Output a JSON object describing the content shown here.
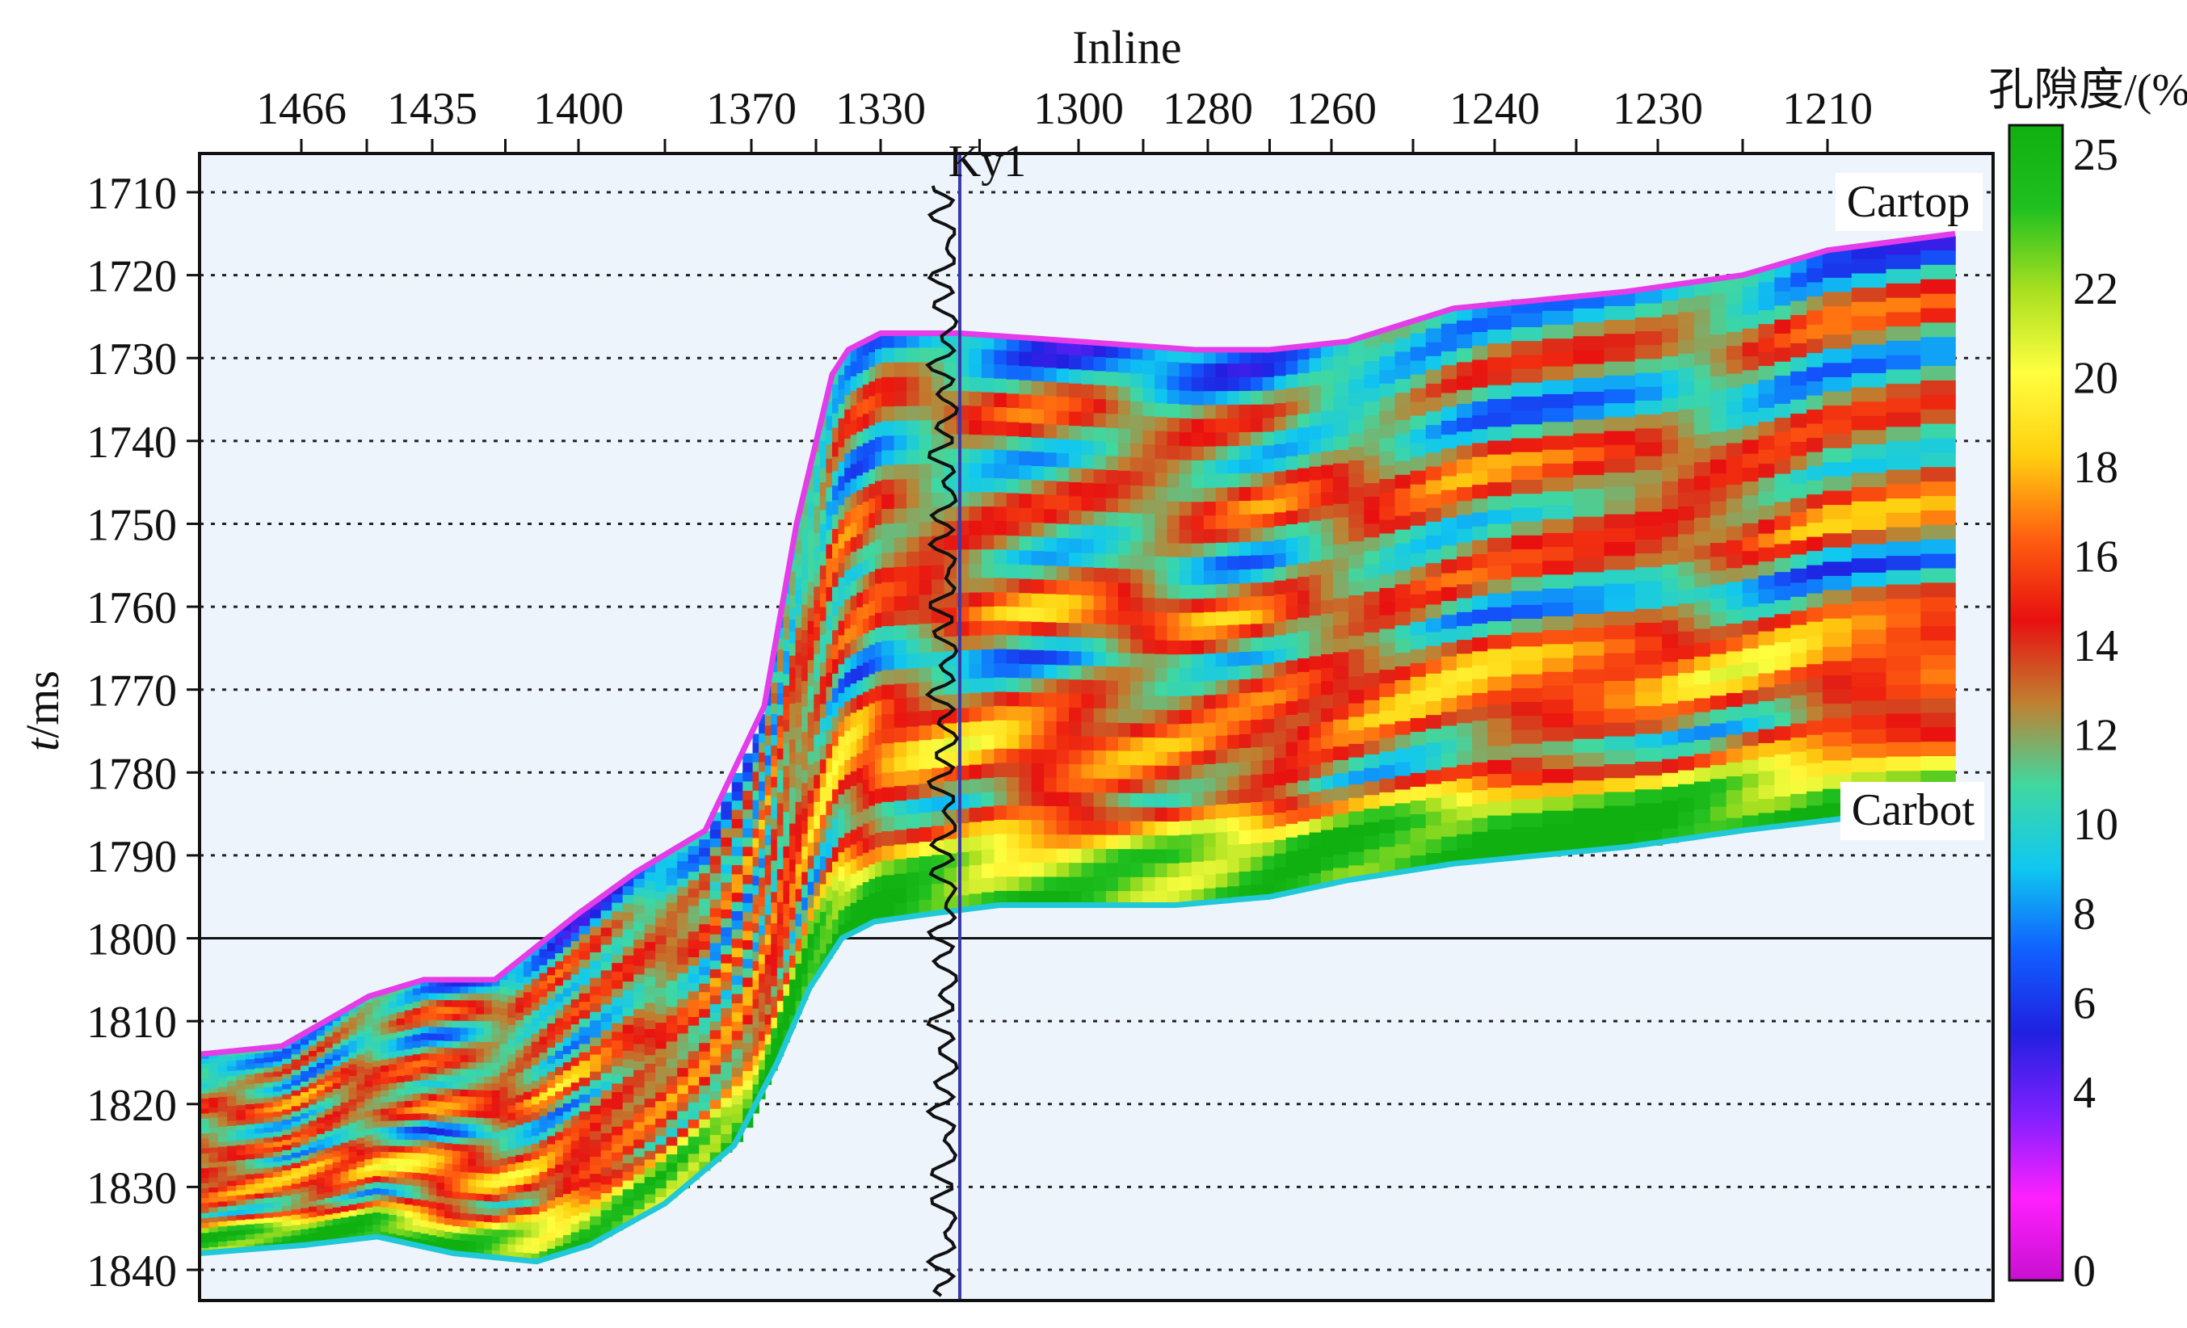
{
  "chart_data": {
    "type": "heatmap",
    "title": "",
    "xlabel": "Inline",
    "ylabel_italic": "t",
    "ylabel_unit": "/ms",
    "x_axis_position": "top",
    "x_tick_labels": [
      "1466",
      "1435",
      "1400",
      "1370",
      "1330",
      "1300",
      "1280",
      "1260",
      "1240",
      "1230",
      "1210"
    ],
    "y_ticks": [
      1710,
      1720,
      1730,
      1740,
      1750,
      1760,
      1770,
      1780,
      1790,
      1800,
      1810,
      1820,
      1830,
      1840
    ],
    "ylim": [
      1840,
      1705
    ],
    "grid": "dotted horizontal",
    "reference_line_t": 1800,
    "well": {
      "name": "Ky1",
      "inline": 1318
    },
    "horizons": [
      {
        "name": "Cartop",
        "color": "#e33ce8",
        "x": [
          1487,
          1470,
          1450,
          1437,
          1420,
          1400,
          1390,
          1378,
          1366,
          1356,
          1345,
          1340,
          1330,
          1318,
          1300,
          1282,
          1270,
          1258,
          1245,
          1232,
          1220,
          1210,
          1203
        ],
        "t": [
          1814,
          1813,
          1807,
          1805,
          1805,
          1797,
          1792,
          1787,
          1772,
          1750,
          1732,
          1729,
          1727,
          1727,
          1728,
          1729,
          1729,
          1728,
          1724,
          1722,
          1720,
          1717,
          1715
        ]
      },
      {
        "name": "Carbot",
        "color": "#20c8d8",
        "x": [
          1487,
          1465,
          1448,
          1430,
          1410,
          1398,
          1385,
          1373,
          1362,
          1352,
          1342,
          1332,
          1322,
          1312,
          1300,
          1285,
          1270,
          1258,
          1245,
          1232,
          1220,
          1207
        ],
        "t": [
          1838,
          1837,
          1836,
          1838,
          1839,
          1837,
          1832,
          1825,
          1815,
          1806,
          1800,
          1798,
          1797,
          1796,
          1796,
          1796,
          1795,
          1793,
          1791,
          1789,
          1787,
          1785
        ]
      }
    ],
    "colorbar": {
      "label": "孔隙度/(%)",
      "range": [
        0,
        25
      ],
      "tick_labels": [
        "25",
        "22",
        "20",
        "18",
        "16",
        "14",
        "12",
        "10",
        "8",
        "6",
        "4",
        "0"
      ],
      "stops": [
        "#c810d0",
        "#ff20ff",
        "#8020ff",
        "#2020e0",
        "#1060ff",
        "#10c8f0",
        "#40d8a0",
        "#c08030",
        "#e81010",
        "#ff6010",
        "#ffd010",
        "#ffff40",
        "#a8e020",
        "#20c020",
        "#10b010"
      ]
    },
    "layers": [
      {
        "dt": 3,
        "porosity": 8
      },
      {
        "dt": 8,
        "porosity": 14
      },
      {
        "dt": 13,
        "porosity": 9
      },
      {
        "dt": 19,
        "porosity": 15
      },
      {
        "dt": 25,
        "porosity": 10
      },
      {
        "dt": 31,
        "porosity": 16
      },
      {
        "dt": 36,
        "porosity": 9
      },
      {
        "dt": 41,
        "porosity": 15
      },
      {
        "dt": 46,
        "porosity": 17
      },
      {
        "dt": 52,
        "porosity": 11
      },
      {
        "dt": 58,
        "porosity": 22
      },
      {
        "dt": 64,
        "porosity": 24
      }
    ]
  }
}
